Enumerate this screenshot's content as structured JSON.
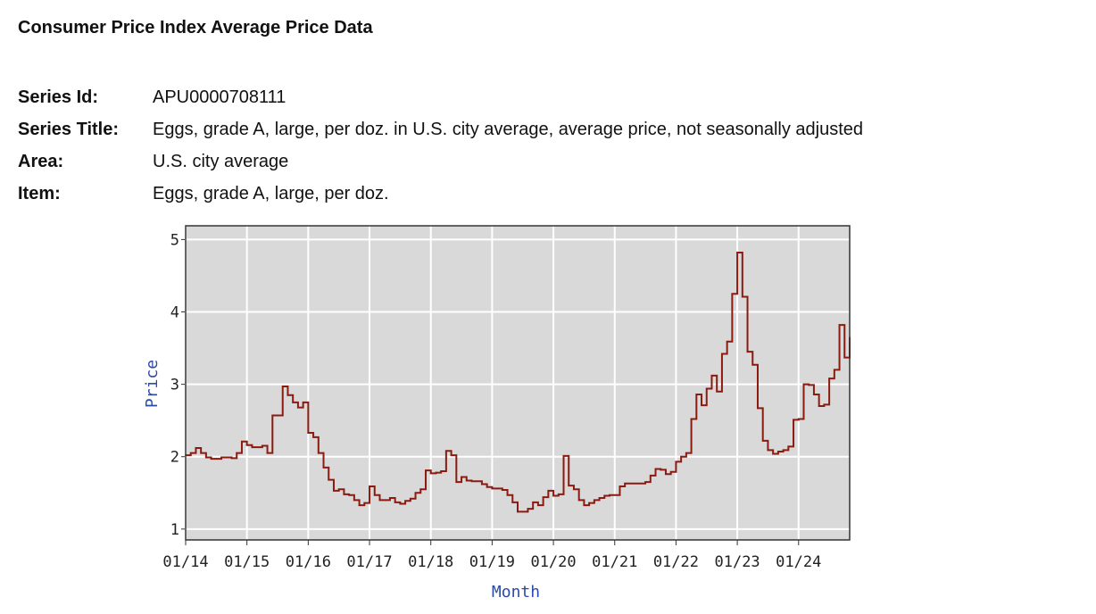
{
  "header": {
    "title": "Consumer Price Index Average Price Data",
    "fields": [
      {
        "label": "Series Id:",
        "value": "APU0000708111"
      },
      {
        "label": "Series Title:",
        "value": "Eggs, grade A, large, per doz. in U.S. city average, average price, not seasonally adjusted"
      },
      {
        "label": "Area:",
        "value": "U.S. city average"
      },
      {
        "label": "Item:",
        "value": "Eggs, grade A, large, per doz."
      }
    ]
  },
  "chart_data": {
    "type": "line",
    "title": "",
    "xlabel": "Month",
    "ylabel": "Price",
    "x_start": "2014-01",
    "x_end": "2024-11",
    "x_frequency": "monthly",
    "x_ticks": [
      "01/14",
      "01/15",
      "01/16",
      "01/17",
      "01/18",
      "01/19",
      "01/20",
      "01/21",
      "01/22",
      "01/23",
      "01/24"
    ],
    "y_ticks": [
      1,
      2,
      3,
      4,
      5
    ],
    "ylim": [
      0.85,
      5.19
    ],
    "grid": true,
    "colors": {
      "line": "#8b1a10",
      "plot_bg": "#d9d9d9",
      "grid": "#ffffff",
      "axis_label": "#2b4aa8"
    },
    "series": [
      {
        "values": [
          2.02,
          2.05,
          2.12,
          2.05,
          1.99,
          1.97,
          1.97,
          1.99,
          1.99,
          1.98,
          2.05,
          2.21,
          2.16,
          2.13,
          2.13,
          2.15,
          2.05,
          2.57,
          2.57,
          2.97,
          2.85,
          2.75,
          2.68,
          2.75,
          2.33,
          2.27,
          2.05,
          1.85,
          1.68,
          1.53,
          1.55,
          1.48,
          1.47,
          1.4,
          1.33,
          1.36,
          1.59,
          1.47,
          1.4,
          1.4,
          1.43,
          1.37,
          1.35,
          1.39,
          1.42,
          1.5,
          1.55,
          1.81,
          1.77,
          1.78,
          1.8,
          2.08,
          2.02,
          1.65,
          1.72,
          1.67,
          1.66,
          1.66,
          1.62,
          1.58,
          1.56,
          1.56,
          1.54,
          1.47,
          1.37,
          1.24,
          1.24,
          1.28,
          1.37,
          1.33,
          1.44,
          1.53,
          1.46,
          1.48,
          2.01,
          1.6,
          1.55,
          1.4,
          1.33,
          1.36,
          1.4,
          1.43,
          1.46,
          1.47,
          1.47,
          1.59,
          1.63,
          1.63,
          1.63,
          1.63,
          1.65,
          1.74,
          1.83,
          1.82,
          1.76,
          1.79,
          1.93,
          2.0,
          2.05,
          2.52,
          2.86,
          2.71,
          2.94,
          3.12,
          2.9,
          3.42,
          3.59,
          4.25,
          4.82,
          4.21,
          3.45,
          3.27,
          2.67,
          2.22,
          2.09,
          2.04,
          2.07,
          2.09,
          2.14,
          2.51,
          2.52,
          3.0,
          2.99,
          2.86,
          2.7,
          2.72,
          3.08,
          3.2,
          3.82,
          3.37,
          3.65
        ]
      }
    ]
  }
}
